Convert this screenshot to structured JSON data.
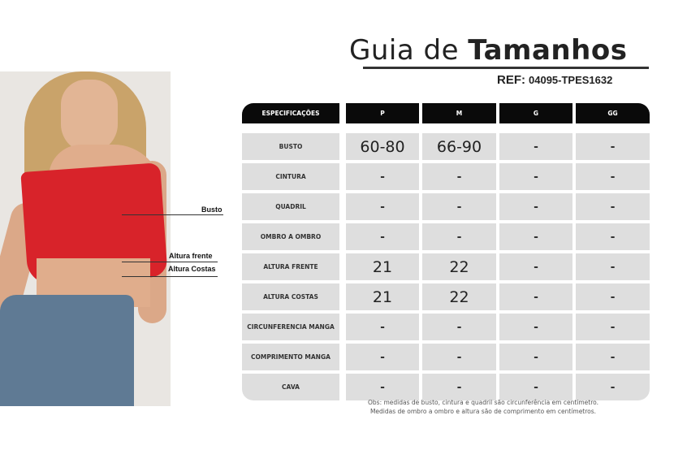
{
  "title": {
    "light": "Guia de",
    "bold": "Tamanhos"
  },
  "ref": {
    "label": "REF:",
    "code": "04095-TPES1632"
  },
  "photo_labels": {
    "busto": "Busto",
    "altura_frente": "Altura frente",
    "altura_costas": "Altura Costas"
  },
  "table": {
    "headers": [
      "ESPECIFICAÇÕES",
      "P",
      "M",
      "G",
      "GG"
    ],
    "rows": [
      {
        "spec": "BUSTO",
        "values": [
          "60-80",
          "66-90",
          "-",
          "-"
        ]
      },
      {
        "spec": "CINTURA",
        "values": [
          "-",
          "-",
          "-",
          "-"
        ]
      },
      {
        "spec": "QUADRIL",
        "values": [
          "-",
          "-",
          "-",
          "-"
        ]
      },
      {
        "spec": "OMBRO A OMBRO",
        "values": [
          "-",
          "-",
          "-",
          "-"
        ]
      },
      {
        "spec": "ALTURA FRENTE",
        "values": [
          "21",
          "22",
          "-",
          "-"
        ]
      },
      {
        "spec": "ALTURA COSTAS",
        "values": [
          "21",
          "22",
          "-",
          "-"
        ]
      },
      {
        "spec": "CIRCUNFERENCIA MANGA",
        "values": [
          "-",
          "-",
          "-",
          "-"
        ]
      },
      {
        "spec": "COMPRIMENTO MANGA",
        "values": [
          "-",
          "-",
          "-",
          "-"
        ]
      },
      {
        "spec": "CAVA",
        "values": [
          "-",
          "-",
          "-",
          "-"
        ]
      }
    ]
  },
  "note": [
    "Obs: medidas de busto, cintura e quadril são circunferência em centimetro.",
    "Medidas de ombro a ombro e altura são de comprimento em centímetros."
  ]
}
